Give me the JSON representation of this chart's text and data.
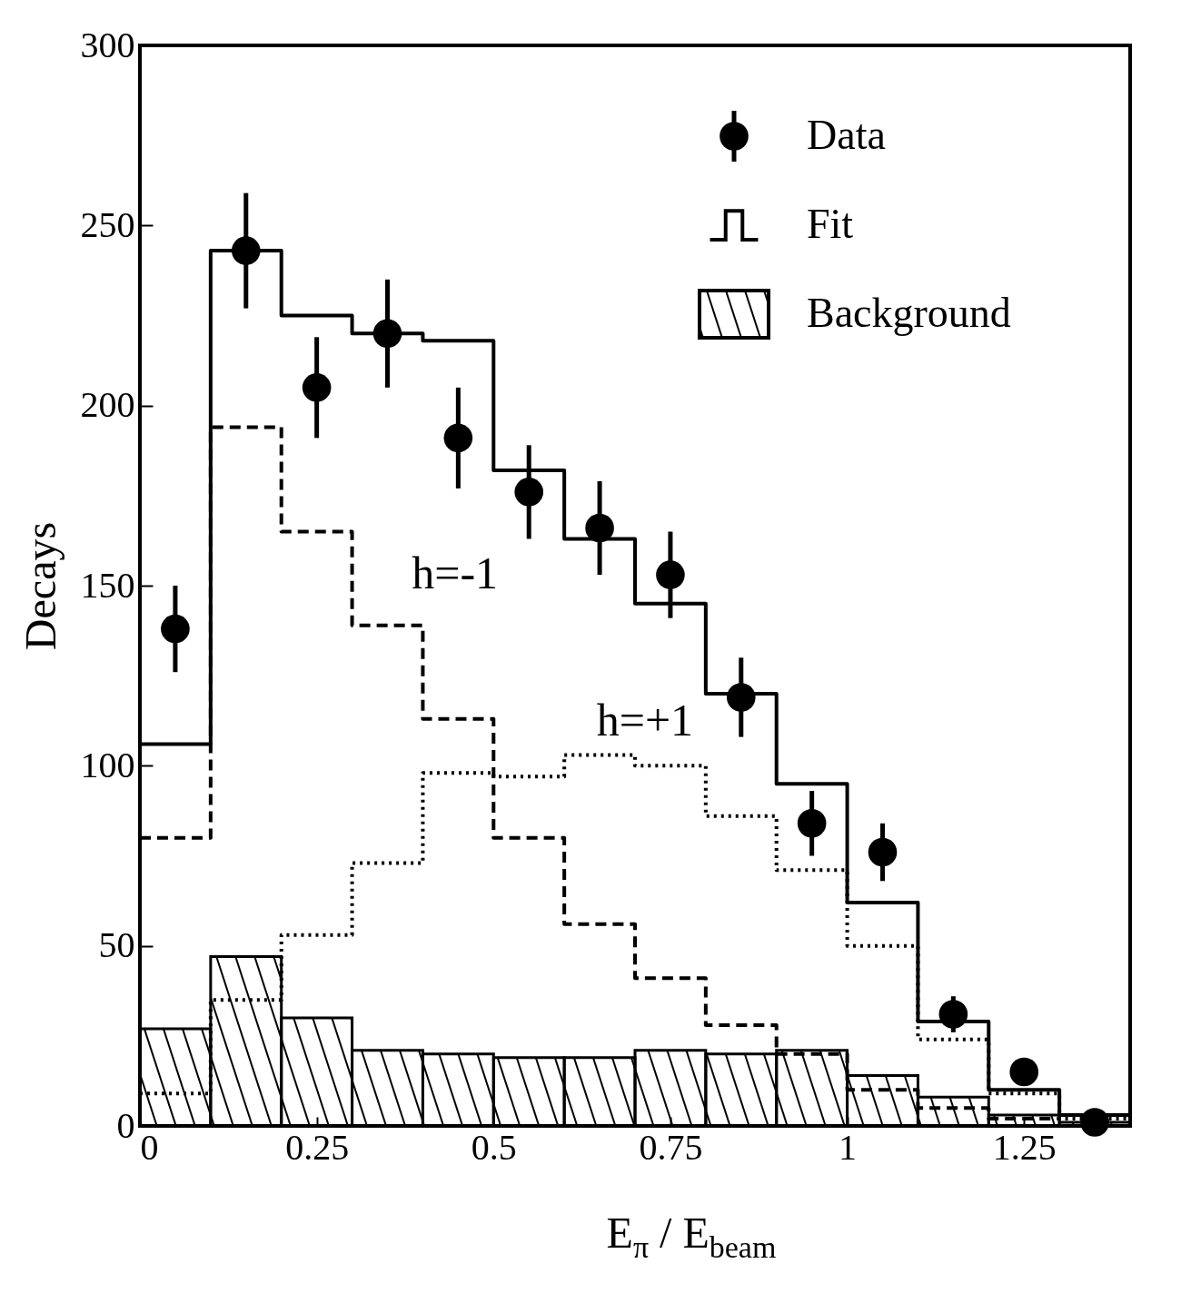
{
  "chart_data": {
    "type": "histogram",
    "xlabel": "E$_{π}$ / E$_{beam}$",
    "ylabel": "Decays",
    "bins": [
      0,
      0.1,
      0.2,
      0.3,
      0.4,
      0.5,
      0.6,
      0.7,
      0.8,
      0.9,
      1,
      1.1,
      1.2,
      1.3,
      1.4
    ],
    "xlim": [
      0,
      1.4
    ],
    "ylim": [
      0,
      300
    ],
    "xticks": [
      0,
      0.25,
      0.5,
      0.75,
      1,
      1.25
    ],
    "yticks": [
      0,
      50,
      100,
      150,
      200,
      250,
      300
    ],
    "grid": false,
    "legend": "top right",
    "series": [
      {
        "name": "Data",
        "type": "scatter",
        "marker": "circle",
        "color": "#000000",
        "x": [
          0.05,
          0.15,
          0.25,
          0.35,
          0.45,
          0.55,
          0.65,
          0.75,
          0.85,
          0.95,
          1.05,
          1.15,
          1.25,
          1.35
        ],
        "values": [
          138,
          243,
          205,
          220,
          191,
          176,
          166,
          153,
          119,
          84,
          76,
          31,
          15,
          1
        ],
        "errors": [
          12,
          16,
          14,
          15,
          14,
          13,
          13,
          12,
          11,
          9,
          8,
          5,
          null,
          null
        ]
      },
      {
        "name": "Fit",
        "type": "step",
        "line_style": "solid",
        "color": "#000000",
        "x": [
          0,
          0.1,
          0.2,
          0.3,
          0.4,
          0.5,
          0.6,
          0.7,
          0.8,
          0.9,
          1,
          1.1,
          1.2,
          1.3,
          1.4
        ],
        "values": [
          106,
          243,
          225,
          220,
          218,
          182,
          163,
          145,
          120,
          95,
          62,
          29,
          10,
          3,
          3
        ]
      },
      {
        "type": "step",
        "line_style": "dashed",
        "color": "#000000",
        "x": [
          0,
          0.1,
          0.2,
          0.3,
          0.4,
          0.5,
          0.6,
          0.7,
          0.8,
          0.9,
          1,
          1.1,
          1.2,
          1.3
        ],
        "values": [
          80,
          194,
          165,
          139,
          113,
          80,
          56,
          41,
          28,
          20,
          10,
          5,
          2,
          2
        ]
      },
      {
        "type": "step",
        "line_style": "dotted",
        "color": "#000000",
        "x": [
          0,
          0.1,
          0.2,
          0.3,
          0.4,
          0.5,
          0.6,
          0.7,
          0.8,
          0.9,
          1,
          1.1,
          1.2,
          1.3,
          1.4
        ],
        "values": [
          9,
          35,
          53,
          73,
          98,
          97,
          103,
          100,
          86,
          71,
          50,
          24,
          9,
          2,
          2
        ]
      },
      {
        "name": "Background",
        "type": "histogram",
        "color": "#000000",
        "values": [
          27,
          47,
          30,
          21,
          20,
          19,
          19,
          21,
          20,
          21,
          14,
          8,
          3,
          1
        ]
      }
    ],
    "annotations": [
      "h=-1",
      "h=+1"
    ]
  }
}
